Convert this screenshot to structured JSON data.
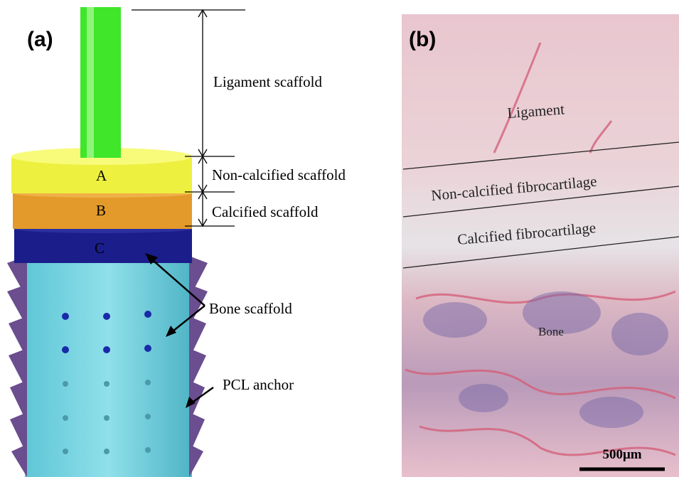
{
  "panel_a": {
    "label": "(a)",
    "annotations": [
      "Ligament scaffold",
      "Non-calcified scaffold",
      "Calcified scaffold",
      "Bone scaffold",
      "PCL anchor"
    ],
    "layers": [
      "A",
      "B",
      "C"
    ]
  },
  "panel_b": {
    "label": "(b)",
    "regions": [
      "Ligament",
      "Non-calcified fibrocartilage",
      "Calcified fibrocartilage",
      "Bone"
    ],
    "scale_bar": "500μm"
  }
}
